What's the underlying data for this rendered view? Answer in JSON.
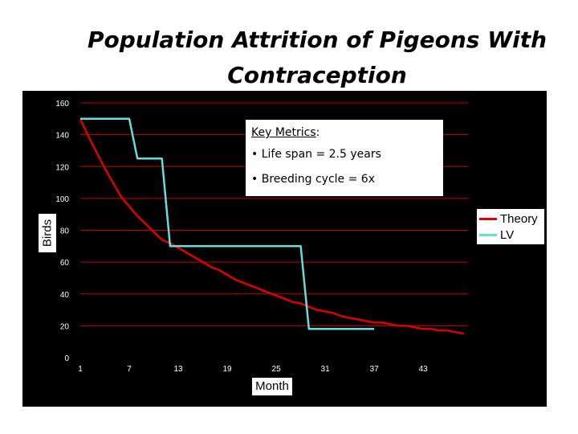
{
  "slide": {
    "title_line1": "Population Attrition of Pigeons With",
    "title_line2": "Contraception"
  },
  "key_metrics": {
    "heading": "Key Metrics",
    "heading_suffix": ":",
    "items": [
      "• Life span = 2.5 years",
      "• Breeding cycle = 6x"
    ]
  },
  "colors": {
    "plot_background": "#000000",
    "gridline": "#cc0000",
    "theory": "#e00000",
    "lv": "#66dddd"
  },
  "chart_data": {
    "type": "line",
    "title": "Population Attrition of Pigeons With Contraception",
    "xlabel": "Month",
    "ylabel": "Birds",
    "xlim": [
      1,
      48
    ],
    "ylim": [
      0,
      160
    ],
    "x_ticks": [
      1,
      7,
      13,
      19,
      25,
      31,
      37,
      43
    ],
    "y_ticks": [
      0,
      20,
      40,
      60,
      80,
      100,
      120,
      140,
      160
    ],
    "grid": "horizontal",
    "legend_position": "right",
    "series": [
      {
        "name": "Theory",
        "x": [
          1,
          2,
          3,
          4,
          5,
          6,
          7,
          8,
          9,
          10,
          11,
          12,
          13,
          14,
          15,
          16,
          17,
          18,
          19,
          20,
          21,
          22,
          23,
          24,
          25,
          26,
          27,
          28,
          29,
          30,
          31,
          32,
          33,
          34,
          35,
          36,
          37,
          38,
          39,
          40,
          41,
          42,
          43,
          44,
          45,
          46,
          47,
          48
        ],
        "y": [
          150,
          139,
          129,
          119,
          110,
          101,
          95,
          89,
          84,
          79,
          74,
          72,
          69,
          66,
          63,
          60,
          57,
          55,
          52,
          49,
          47,
          45,
          43,
          41,
          39,
          37,
          35,
          34,
          32,
          30,
          29,
          28,
          26,
          25,
          24,
          23,
          22,
          22,
          21,
          20,
          20,
          19,
          18,
          18,
          17,
          17,
          16,
          15
        ]
      },
      {
        "name": "LV",
        "x": [
          1,
          7,
          8,
          11,
          12,
          16,
          17,
          28,
          29,
          30,
          31,
          32,
          33,
          34,
          35,
          36,
          37
        ],
        "y": [
          150,
          150,
          125,
          125,
          70,
          70,
          70,
          70,
          18,
          18,
          18,
          18,
          18,
          18,
          18,
          18,
          18
        ]
      }
    ]
  }
}
